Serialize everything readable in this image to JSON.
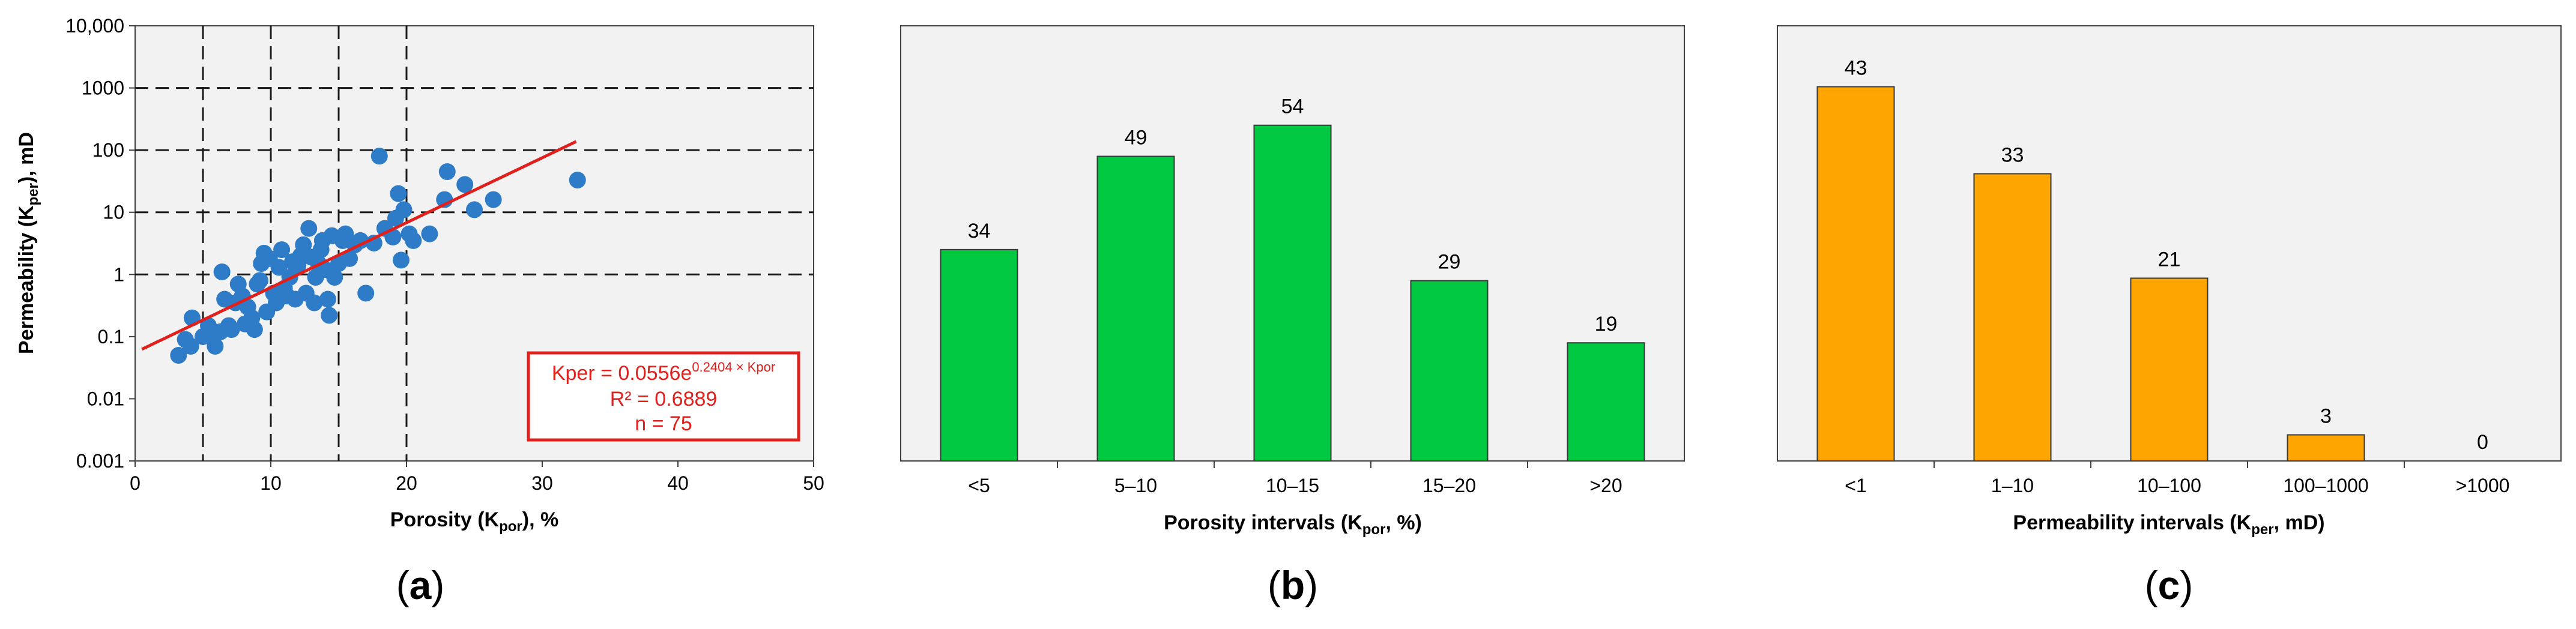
{
  "panels": [
    {
      "label": "(a)",
      "label_letter": "a"
    },
    {
      "label": "(b)",
      "label_letter": "b"
    },
    {
      "label": "(c)",
      "label_letter": "c"
    }
  ],
  "colors": {
    "scatter_point": "#2e7bc8",
    "trend_line": "#e0201c",
    "green_bar": "#00c840",
    "orange_bar": "#ffa500",
    "plot_background": "#f2f2f2"
  },
  "chart_data": [
    {
      "type": "scatter",
      "xlabel_main": "Porosity (K",
      "xlabel_sub": "por",
      "xlabel_tail": "), %",
      "ylabel_main": "Permeability (K",
      "ylabel_sub": "per",
      "ylabel_tail": "), mD",
      "xlim": [
        0,
        50
      ],
      "xticks": [
        0,
        10,
        20,
        30,
        40,
        50
      ],
      "xtick_labels": [
        "0",
        "10",
        "20",
        "30",
        "40",
        "50"
      ],
      "yscale": "log",
      "ylim": [
        0.001,
        10000
      ],
      "yticks": [
        0.001,
        0.01,
        0.1,
        1,
        10,
        100,
        1000,
        10000
      ],
      "ytick_labels": [
        "0.001",
        "0.01",
        "0.1",
        "1",
        "10",
        "100",
        "1000",
        "10,000"
      ],
      "vertical_dashed_lines": [
        5,
        10,
        15,
        20
      ],
      "horizontal_dashed_lines": [
        1,
        10,
        100,
        1000
      ],
      "trendline": {
        "a": 0.0556,
        "b": 0.2404,
        "x_range": [
          0.5,
          32.5
        ]
      },
      "equation": {
        "line1_prefix": "Kper = 0.0556e",
        "line1_exponent": "0.2404 × Kpor",
        "line2": "R² = 0.6889",
        "line3": "n = 75"
      },
      "points": [
        [
          3.2,
          0.05
        ],
        [
          3.7,
          0.09
        ],
        [
          4.1,
          0.07
        ],
        [
          4.2,
          0.2
        ],
        [
          5.0,
          0.1
        ],
        [
          5.4,
          0.15
        ],
        [
          5.7,
          0.12
        ],
        [
          5.9,
          0.07
        ],
        [
          6.3,
          0.12
        ],
        [
          6.4,
          1.1
        ],
        [
          6.6,
          0.4
        ],
        [
          6.9,
          0.15
        ],
        [
          7.1,
          0.13
        ],
        [
          7.4,
          0.35
        ],
        [
          7.6,
          0.7
        ],
        [
          7.9,
          0.45
        ],
        [
          8.1,
          0.16
        ],
        [
          8.3,
          0.3
        ],
        [
          8.6,
          0.2
        ],
        [
          8.8,
          0.13
        ],
        [
          9.0,
          0.7
        ],
        [
          9.2,
          0.8
        ],
        [
          9.3,
          1.5
        ],
        [
          9.5,
          2.2
        ],
        [
          9.7,
          0.25
        ],
        [
          9.9,
          1.8
        ],
        [
          10.2,
          0.5
        ],
        [
          10.4,
          0.35
        ],
        [
          10.6,
          1.3
        ],
        [
          10.8,
          2.5
        ],
        [
          11.0,
          0.6
        ],
        [
          11.2,
          0.45
        ],
        [
          11.4,
          0.9
        ],
        [
          11.6,
          1.6
        ],
        [
          11.8,
          0.4
        ],
        [
          12.0,
          1.4
        ],
        [
          12.2,
          2.0
        ],
        [
          12.4,
          3.0
        ],
        [
          12.6,
          0.5
        ],
        [
          12.8,
          5.5
        ],
        [
          13.0,
          1.9
        ],
        [
          13.2,
          0.35
        ],
        [
          13.3,
          0.9
        ],
        [
          13.5,
          1.5
        ],
        [
          13.7,
          2.5
        ],
        [
          13.8,
          3.5
        ],
        [
          14.0,
          1.2
        ],
        [
          14.2,
          0.4
        ],
        [
          14.3,
          0.22
        ],
        [
          14.5,
          4.2
        ],
        [
          14.7,
          0.9
        ],
        [
          15.0,
          1.5
        ],
        [
          15.3,
          3.5
        ],
        [
          15.5,
          4.5
        ],
        [
          15.8,
          1.8
        ],
        [
          16.2,
          3.0
        ],
        [
          16.6,
          3.5
        ],
        [
          17.0,
          0.5
        ],
        [
          17.6,
          3.2
        ],
        [
          18.0,
          80
        ],
        [
          18.4,
          5.5
        ],
        [
          19.0,
          4.0
        ],
        [
          19.2,
          8.0
        ],
        [
          19.4,
          20
        ],
        [
          19.6,
          1.7
        ],
        [
          19.8,
          11
        ],
        [
          20.2,
          4.5
        ],
        [
          20.5,
          3.5
        ],
        [
          21.7,
          4.5
        ],
        [
          22.8,
          16
        ],
        [
          23.0,
          45
        ],
        [
          24.3,
          28
        ],
        [
          25.0,
          11
        ],
        [
          26.4,
          16
        ],
        [
          32.6,
          33
        ]
      ]
    },
    {
      "type": "bar",
      "xlabel_main": "Porosity intervals (K",
      "xlabel_sub": "por",
      "xlabel_tail": ", %)",
      "categories": [
        "<5",
        "5–10",
        "10–15",
        "15–20",
        ">20"
      ],
      "values": [
        34,
        49,
        54,
        29,
        19
      ],
      "ylim": [
        0,
        70
      ]
    },
    {
      "type": "bar",
      "xlabel_main": "Permeability intervals (K",
      "xlabel_sub": "per",
      "xlabel_tail": ", mD)",
      "categories": [
        "<1",
        "1–10",
        "10–100",
        "100–1000",
        ">1000"
      ],
      "values": [
        43,
        33,
        21,
        3,
        0
      ],
      "ylim": [
        0,
        50
      ]
    }
  ]
}
